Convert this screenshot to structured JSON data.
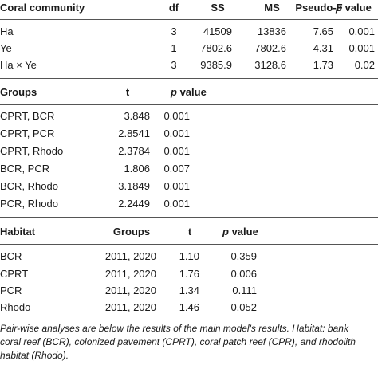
{
  "section1": {
    "headers": {
      "community": "Coral community",
      "df": "df",
      "ss": "SS",
      "ms": "MS",
      "pseudo_f": "Pseudo-F",
      "p_italic": "p",
      "p_rest": " value"
    },
    "rows": [
      {
        "label": "Ha",
        "df": "3",
        "ss": "41509",
        "ms": "13836",
        "f": "7.65",
        "p": "0.001"
      },
      {
        "label": "Ye",
        "df": "1",
        "ss": "7802.6",
        "ms": "7802.6",
        "f": "4.31",
        "p": "0.001"
      },
      {
        "label": "Ha × Ye",
        "df": "3",
        "ss": "9385.9",
        "ms": "3128.6",
        "f": "1.73",
        "p": "0.02"
      }
    ]
  },
  "section2": {
    "headers": {
      "groups": "Groups",
      "t": "t",
      "p_italic": "p",
      "p_rest": " value"
    },
    "rows": [
      {
        "label": "CPRT, BCR",
        "t": "3.848",
        "p": "0.001"
      },
      {
        "label": "CPRT, PCR",
        "t": "2.8541",
        "p": "0.001"
      },
      {
        "label": "CPRT, Rhodo",
        "t": "2.3784",
        "p": "0.001"
      },
      {
        "label": "BCR, PCR",
        "t": "1.806",
        "p": "0.007"
      },
      {
        "label": "BCR, Rhodo",
        "t": "3.1849",
        "p": "0.001"
      },
      {
        "label": "PCR, Rhodo",
        "t": "2.2449",
        "p": "0.001"
      }
    ]
  },
  "section3": {
    "headers": {
      "habitat": "Habitat",
      "groups": "Groups",
      "t": "t",
      "p_italic": "p",
      "p_rest": " value"
    },
    "rows": [
      {
        "label": "BCR",
        "groups": "2011, 2020",
        "t": "1.10",
        "p": "0.359"
      },
      {
        "label": "CPRT",
        "groups": "2011, 2020",
        "t": "1.76",
        "p": "0.006"
      },
      {
        "label": "PCR",
        "groups": "2011, 2020",
        "t": "1.34",
        "p": "0.111"
      },
      {
        "label": "Rhodo",
        "groups": "2011, 2020",
        "t": "1.46",
        "p": "0.052"
      }
    ]
  },
  "footnote": {
    "line1": "Pair-wise analyses are below the results of the main model's results. Habitat: bank",
    "line2": "coral reef (BCR), colonized pavement (CPRT), coral patch reef (CPR), and rhodolith",
    "line3": "habitat (Rhodo)."
  }
}
